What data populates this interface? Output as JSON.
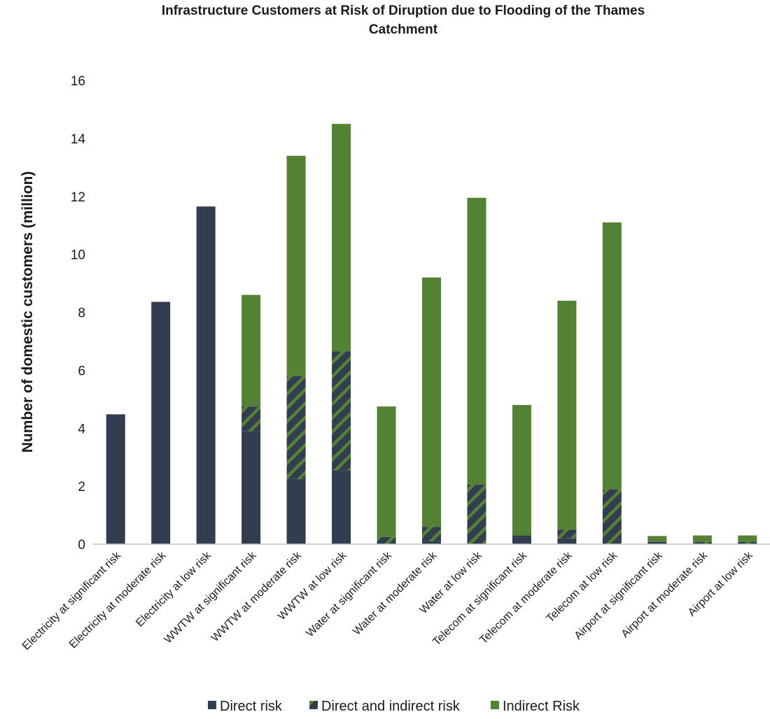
{
  "chart_data": {
    "type": "bar",
    "stacked": true,
    "title": "Infrastructure Customers at Risk of Diruption due to Flooding of the Thames Catchment",
    "title_lines": [
      "Infrastructure Customers at Risk of Diruption due to Flooding of the Thames",
      "Catchment"
    ],
    "ylabel": "Number of domestic customers (million)",
    "xlabel": "",
    "ylim": [
      0,
      16
    ],
    "yticks": [
      0,
      2,
      4,
      6,
      8,
      10,
      12,
      14,
      16
    ],
    "grid": false,
    "legend_position": "bottom",
    "categories": [
      "Electricity at significant risk",
      "Electricity at moderate risk",
      "Electricity at low risk",
      "WWTW at significant risk",
      "WWTW at moderate risk",
      "WWTW at low risk",
      "Water at significant risk",
      "Water at moderate risk",
      "Water at low risk",
      "Telecom at significant risk",
      "Telecom at moderate risk",
      "Telecom at low risk",
      "Airport at significant risk",
      "Airport at moderate risk",
      "Airport at low risk"
    ],
    "series": [
      {
        "name": "Direct risk",
        "color": "#323d4f",
        "pattern": "solid",
        "values": [
          4.48,
          8.36,
          11.65,
          3.9,
          2.25,
          2.55,
          0.0,
          0.1,
          0.0,
          0.3,
          0.2,
          0.0,
          0.08,
          0.0,
          0.0
        ]
      },
      {
        "name": "Direct and indirect risk",
        "color": "#323d4f",
        "pattern": "hatch",
        "values": [
          0,
          0,
          0,
          0.85,
          3.55,
          4.1,
          0.25,
          0.5,
          2.05,
          0.0,
          0.3,
          1.9,
          0.0,
          0.08,
          0.08
        ]
      },
      {
        "name": "Indirect Risk",
        "color": "#548235",
        "pattern": "solid",
        "values": [
          0,
          0,
          0,
          3.85,
          7.6,
          7.85,
          4.5,
          8.6,
          9.9,
          4.5,
          7.9,
          9.2,
          0.2,
          0.22,
          0.22
        ]
      }
    ]
  }
}
